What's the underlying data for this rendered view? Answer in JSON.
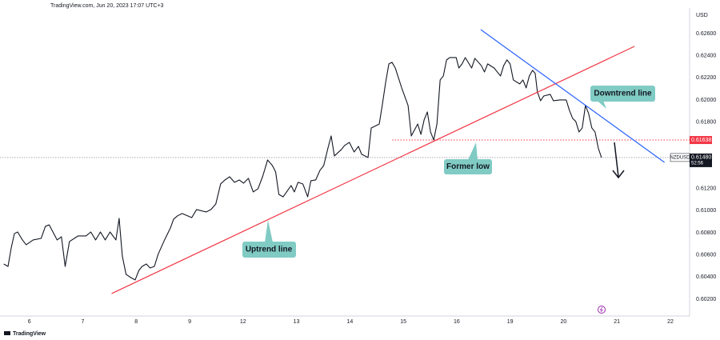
{
  "chart_data": {
    "type": "line",
    "header": "TradingView.com, Jun 20, 2023 17:07 UTC+3",
    "currency": "USD",
    "footer": "TradingView",
    "x": [
      -0.48,
      -0.4,
      -0.34,
      -0.28,
      -0.22,
      -0.13,
      -0.06,
      0.07,
      0.22,
      0.3,
      0.37,
      0.52,
      0.6,
      0.67,
      0.75,
      0.91,
      1.06,
      1.15,
      1.24,
      1.33,
      1.42,
      1.51,
      1.62,
      1.68,
      1.74,
      1.81,
      1.9,
      1.98,
      2.05,
      2.11,
      2.19,
      2.26,
      2.34,
      2.41,
      2.53,
      2.64,
      2.7,
      2.77,
      2.86,
      3.04,
      3.13,
      3.31,
      3.4,
      3.49,
      3.58,
      3.66,
      3.75,
      3.84,
      3.93,
      4.01,
      4.1,
      4.19,
      4.28,
      4.37,
      4.46,
      4.55,
      4.61,
      4.67,
      4.75,
      4.9,
      4.96,
      5.03,
      5.12,
      5.21,
      5.27,
      5.36,
      5.44,
      5.51,
      5.59,
      5.65,
      5.71,
      5.84,
      5.9,
      5.99,
      6.08,
      6.16,
      6.22,
      6.34,
      6.4,
      6.55,
      6.61,
      6.67,
      6.73,
      6.79,
      6.85,
      6.97,
      7.09,
      7.15,
      7.27,
      7.33,
      7.39,
      7.45,
      7.51,
      7.57,
      7.63,
      7.69,
      7.75,
      7.81,
      7.87,
      7.99,
      8.04,
      8.1,
      8.16,
      8.28,
      8.34,
      8.46,
      8.52,
      8.58,
      8.7,
      8.82,
      8.88,
      8.94,
      9.0,
      9.06,
      9.18,
      9.24,
      9.3,
      9.36,
      9.42,
      9.47,
      9.51,
      9.57,
      9.63,
      9.75,
      9.81,
      9.93,
      10.05,
      10.11,
      10.17,
      10.23,
      10.29,
      10.35,
      10.41,
      10.47,
      10.53,
      10.59,
      10.65,
      10.71
    ],
    "series": [
      {
        "name": "NZDUSD",
        "color": "#131722",
        "values": [
          0.60518,
          0.60496,
          0.60663,
          0.60793,
          0.60807,
          0.60735,
          0.60692,
          0.60735,
          0.60749,
          0.60858,
          0.60872,
          0.60735,
          0.60764,
          0.60496,
          0.60721,
          0.60771,
          0.60771,
          0.60807,
          0.60735,
          0.60807,
          0.60735,
          0.60807,
          0.60735,
          0.6093,
          0.6059,
          0.60424,
          0.60395,
          0.60374,
          0.6046,
          0.60496,
          0.60518,
          0.60482,
          0.60496,
          0.60605,
          0.60735,
          0.60843,
          0.60923,
          0.60952,
          0.60974,
          0.60937,
          0.6101,
          0.60988,
          0.6101,
          0.6106,
          0.61241,
          0.61277,
          0.61306,
          0.61256,
          0.61277,
          0.61248,
          0.61292,
          0.61169,
          0.61198,
          0.61313,
          0.61458,
          0.61407,
          0.6135,
          0.61147,
          0.61125,
          0.61227,
          0.61169,
          0.61256,
          0.61241,
          0.61125,
          0.6127,
          0.61277,
          0.61364,
          0.61407,
          0.61566,
          0.61675,
          0.61494,
          0.61552,
          0.61588,
          0.61617,
          0.6153,
          0.61581,
          0.61509,
          0.6148,
          0.61747,
          0.61783,
          0.61964,
          0.62159,
          0.62326,
          0.6234,
          0.62289,
          0.62109,
          0.6195,
          0.61675,
          0.61783,
          0.61689,
          0.6182,
          0.61892,
          0.61711,
          0.61639,
          0.61783,
          0.62181,
          0.62217,
          0.62362,
          0.62383,
          0.62383,
          0.62289,
          0.62326,
          0.62383,
          0.62289,
          0.62376,
          0.62311,
          0.62253,
          0.62326,
          0.62289,
          0.62217,
          0.62311,
          0.62362,
          0.62326,
          0.62181,
          0.62145,
          0.62181,
          0.62109,
          0.62217,
          0.62268,
          0.62239,
          0.62073,
          0.61993,
          0.62036,
          0.62051,
          0.61993,
          0.62,
          0.62,
          0.61906,
          0.61834,
          0.61805,
          0.61711,
          0.61747,
          0.6195,
          0.61877,
          0.61747,
          0.61711,
          0.61566,
          0.6148
        ]
      }
    ],
    "xlim": [
      -0.55,
      12.36
    ],
    "ylim": [
      0.60048,
      0.62831
    ],
    "xticks": [
      {
        "value": 0,
        "label": "6"
      },
      {
        "value": 1,
        "label": "7"
      },
      {
        "value": 2,
        "label": "8"
      },
      {
        "value": 3,
        "label": "9"
      },
      {
        "value": 4,
        "label": "12"
      },
      {
        "value": 5,
        "label": "13"
      },
      {
        "value": 6,
        "label": "14"
      },
      {
        "value": 7,
        "label": "15"
      },
      {
        "value": 8,
        "label": "16"
      },
      {
        "value": 9,
        "label": "19"
      },
      {
        "value": 10,
        "label": "20"
      },
      {
        "value": 11,
        "label": "21"
      },
      {
        "value": 12,
        "label": "22"
      }
    ],
    "yticks": [
      {
        "value": 0.602,
        "label": "0.60200"
      },
      {
        "value": 0.604,
        "label": "0.60400"
      },
      {
        "value": 0.606,
        "label": "0.60600"
      },
      {
        "value": 0.608,
        "label": "0.60800"
      },
      {
        "value": 0.61,
        "label": "0.61000"
      },
      {
        "value": 0.612,
        "label": "0.61200"
      },
      {
        "value": 0.618,
        "label": "0.61800"
      },
      {
        "value": 0.62,
        "label": "0.62000"
      },
      {
        "value": 0.622,
        "label": "0.62200"
      },
      {
        "value": 0.624,
        "label": "0.62400"
      },
      {
        "value": 0.626,
        "label": "0.62600"
      }
    ],
    "trendlines": [
      {
        "name": "Uptrend line",
        "color": "#f23645",
        "x": [
          1.54,
          11.33
        ],
        "values": [
          0.60251,
          0.62485
        ]
      },
      {
        "name": "Downtrend line",
        "color": "#2962ff",
        "x": [
          8.45,
          11.89
        ],
        "values": [
          0.62636,
          0.61436
        ]
      }
    ],
    "levels": [
      {
        "name": "Former low",
        "value": 0.61638,
        "label": "0.61638",
        "x": 6.79,
        "color": "#f23645"
      }
    ],
    "last_price": {
      "value": 0.6148,
      "label": "0.61480",
      "countdown": "52:56"
    }
  }
}
